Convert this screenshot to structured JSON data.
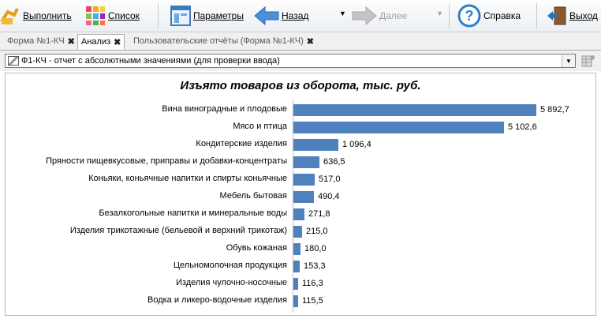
{
  "toolbar": {
    "execute": "Выполнить",
    "list": "Список",
    "params": "Параметры",
    "back": "Назад",
    "forward": "Далее",
    "help": "Справка",
    "exit": "Выход"
  },
  "tabs": [
    {
      "label": "Форма №1-КЧ",
      "active": false
    },
    {
      "label": "Анализ",
      "active": true
    },
    {
      "label": "Пользовательские отчёты (Форма №1-КЧ)",
      "active": false
    }
  ],
  "report_select": {
    "value": "Ф1-КЧ - отчет с абсолютными значениями (для проверки ввода)"
  },
  "colors": {
    "bar": "#4f81bd"
  },
  "chart_data": {
    "type": "bar",
    "orientation": "horizontal",
    "title": "Изъято товаров из оборота, тыс. руб.",
    "categories": [
      "Вина виноградные и плодовые",
      "Мясо и птица",
      "Кондитерские изделия",
      "Пряности пищевкусовые, приправы и добавки-концентраты",
      "Коньяки, коньячные напитки и спирты коньячные",
      "Мебель бытовая",
      "Безалкогольные напитки и минеральные воды",
      "Изделия трикотажные (бельевой и верхний трикотаж)",
      "Обувь кожаная",
      "Цельномолочная продукция",
      "Изделия чулочно-носочные",
      "Водка и ликеро-водочные изделия"
    ],
    "values": [
      5892.7,
      5102.6,
      1096.4,
      636.5,
      517.0,
      490.4,
      271.8,
      215.0,
      180.0,
      153.3,
      116.3,
      115.5
    ],
    "value_labels": [
      "5 892,7",
      "5 102,6",
      "1 096,4",
      "636,5",
      "517,0",
      "490,4",
      "271,8",
      "215,0",
      "180,0",
      "153,3",
      "116,3",
      "115,5"
    ],
    "grid": false,
    "legend": "none"
  }
}
